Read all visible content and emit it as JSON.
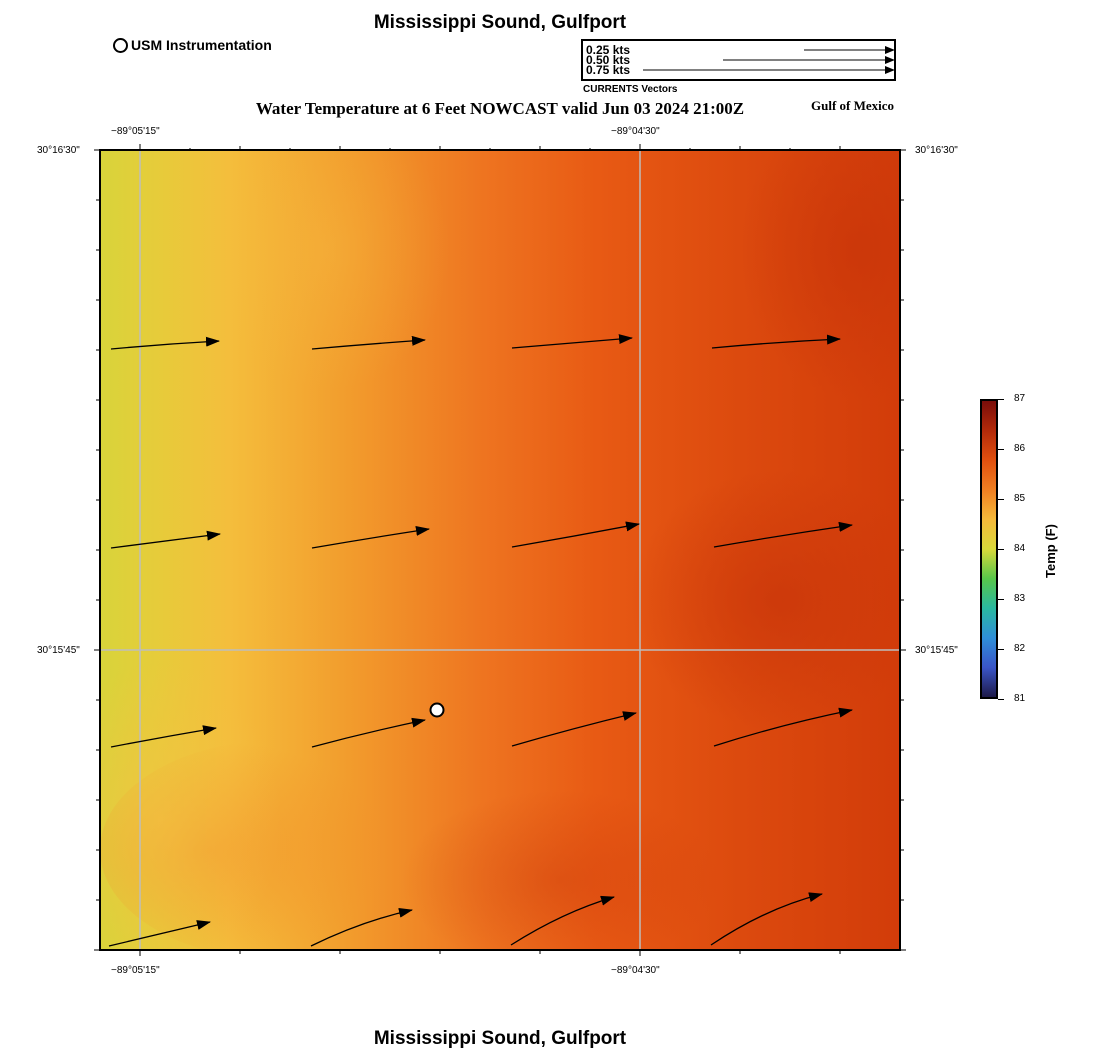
{
  "header": {
    "title": "Mississippi Sound, Gulfport",
    "subtitle": "Water Temperature at 6 Feet NOWCAST valid Jun 03 2024 21:00Z",
    "region_label": "Gulf of Mexico",
    "marker_legend": "USM Instrumentation"
  },
  "footer": {
    "title": "Mississippi Sound, Gulfport"
  },
  "vector_legend": {
    "caption": "CURRENTS Vectors",
    "entries": [
      {
        "label": "0.25 kts",
        "speed": 0.25
      },
      {
        "label": "0.50 kts",
        "speed": 0.5
      },
      {
        "label": "0.75 kts",
        "speed": 0.75
      }
    ]
  },
  "axes": {
    "lon_labels": [
      "−89°05'15\"",
      "−89°04'30\""
    ],
    "lat_labels": [
      "30°16'30\"",
      "30°15'45\""
    ]
  },
  "colorbar": {
    "title": "Temp (F)",
    "min": 81,
    "max": 87,
    "ticks": [
      "87",
      "86",
      "85",
      "84",
      "83",
      "82",
      "81"
    ],
    "colors": [
      "#7a0d0a",
      "#b32a0a",
      "#e0500f",
      "#f07f22",
      "#f5b93a",
      "#d9d83a",
      "#58c64a",
      "#2ab8a0",
      "#2f8fd8",
      "#3a55c8",
      "#1e1a4a"
    ]
  },
  "station": {
    "name": "USM Instrumentation"
  }
}
